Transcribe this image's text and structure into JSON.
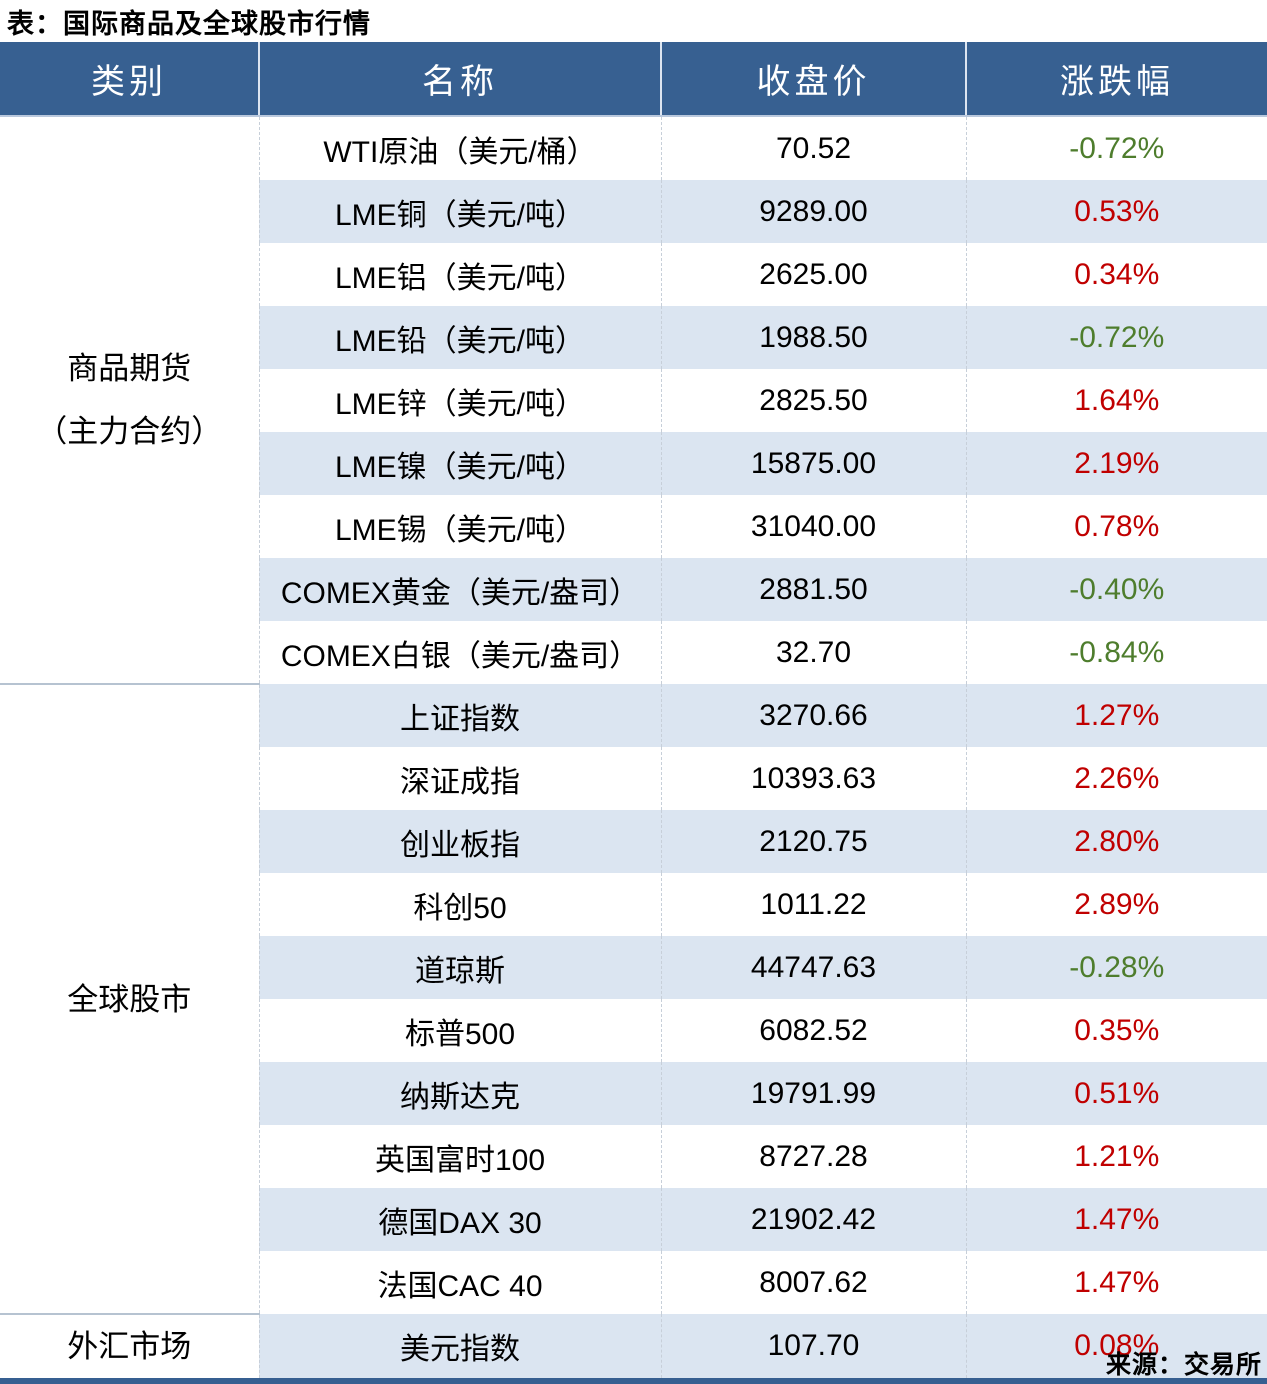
{
  "colors": {
    "header_bg": "#376091",
    "header_text": "#FFFFFF",
    "stripe": "#DBE5F1",
    "positive_red": "#C00000",
    "negative_green": "#4E7D2D",
    "bottom_border": "#365F91"
  },
  "chart_data": {
    "type": "table",
    "title": "表：国际商品及全球股市行情",
    "source": "来源：交易所",
    "columns": [
      "类别",
      "名称",
      "收盘价",
      "涨跌幅"
    ],
    "sections": [
      {
        "category_lines": [
          "商品期货",
          "（主力合约）"
        ],
        "rows": [
          {
            "name": "WTI原油（美元/桶）",
            "close": "70.52",
            "change": "-0.72%"
          },
          {
            "name": "LME铜（美元/吨）",
            "close": "9289.00",
            "change": "0.53%"
          },
          {
            "name": "LME铝（美元/吨）",
            "close": "2625.00",
            "change": "0.34%"
          },
          {
            "name": "LME铅（美元/吨）",
            "close": "1988.50",
            "change": "-0.72%"
          },
          {
            "name": "LME锌（美元/吨）",
            "close": "2825.50",
            "change": "1.64%"
          },
          {
            "name": "LME镍（美元/吨）",
            "close": "15875.00",
            "change": "2.19%"
          },
          {
            "name": "LME锡（美元/吨）",
            "close": "31040.00",
            "change": "0.78%"
          },
          {
            "name": "COMEX黄金（美元/盎司）",
            "close": "2881.50",
            "change": "-0.40%"
          },
          {
            "name": "COMEX白银（美元/盎司）",
            "close": "32.70",
            "change": "-0.84%"
          }
        ]
      },
      {
        "category_lines": [
          "全球股市"
        ],
        "rows": [
          {
            "name": "上证指数",
            "close": "3270.66",
            "change": "1.27%"
          },
          {
            "name": "深证成指",
            "close": "10393.63",
            "change": "2.26%"
          },
          {
            "name": "创业板指",
            "close": "2120.75",
            "change": "2.80%"
          },
          {
            "name": "科创50",
            "close": "1011.22",
            "change": "2.89%"
          },
          {
            "name": "道琼斯",
            "close": "44747.63",
            "change": "-0.28%"
          },
          {
            "name": "标普500",
            "close": "6082.52",
            "change": "0.35%"
          },
          {
            "name": "纳斯达克",
            "close": "19791.99",
            "change": "0.51%"
          },
          {
            "name": "英国富时100",
            "close": "8727.28",
            "change": "1.21%"
          },
          {
            "name": "德国DAX 30",
            "close": "21902.42",
            "change": "1.47%"
          },
          {
            "name": "法国CAC 40",
            "close": "8007.62",
            "change": "1.47%"
          }
        ]
      },
      {
        "category_lines": [
          "外汇市场"
        ],
        "rows": [
          {
            "name": "美元指数",
            "close": "107.70",
            "change": "0.08%"
          }
        ]
      }
    ]
  }
}
